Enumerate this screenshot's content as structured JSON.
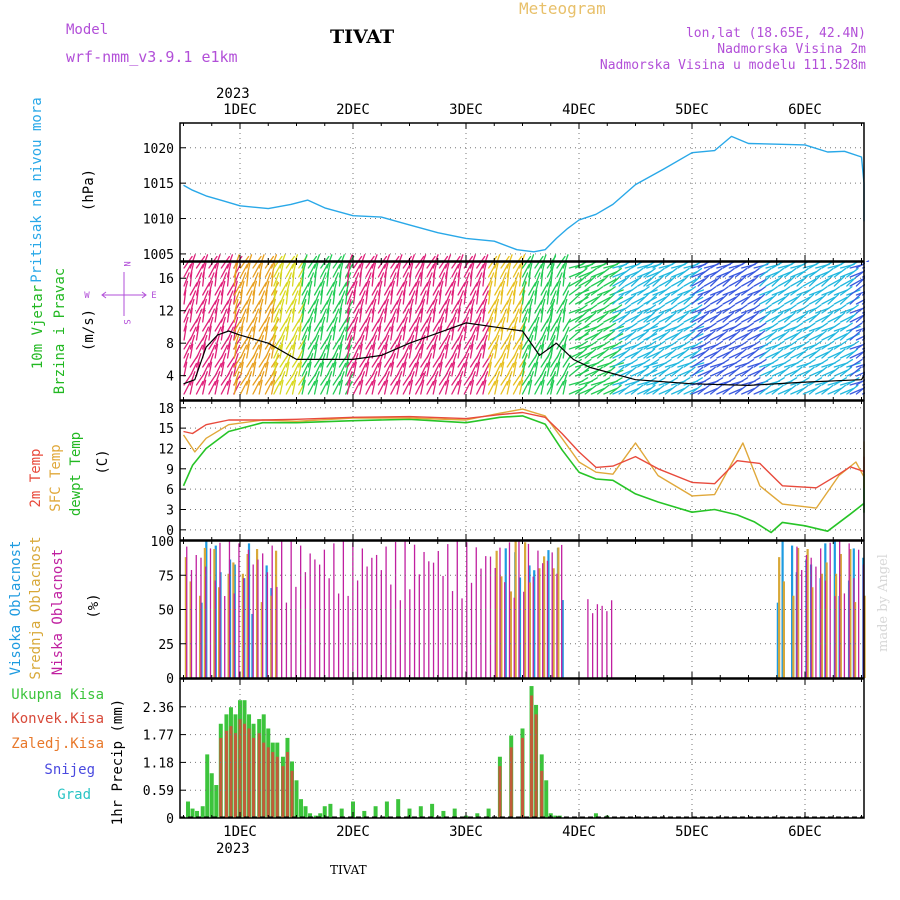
{
  "header": {
    "model_label": "Model",
    "model_name": "wrf-nmm_v3.9.1  e1km",
    "station": "TIVAT",
    "meteogram": "Meteogram",
    "lonlat": "lon,lat (18.65E, 42.4N)",
    "altitude": "Nadmorska Visina 2m",
    "model_altitude": "Nadmorska Visina u modelu 111.528m",
    "watermark": "made by Angel",
    "footer_station": "TIVAT"
  },
  "time_axis": {
    "top_year": "2023",
    "bottom_year": "2023",
    "days": [
      "1DEC",
      "2DEC",
      "3DEC",
      "4DEC",
      "5DEC",
      "6DEC"
    ]
  },
  "colors": {
    "pressure": "#29a8e8",
    "temp2m": "#e84a3c",
    "sfc_temp": "#e0a83a",
    "dewpt": "#27c427",
    "total_rain": "#3cc43c",
    "convective": "#d84a3a",
    "freezing": "#e8782a",
    "snow": "#4a4ae0",
    "hail": "#29c4c4",
    "high_cloud": "#1e9be0",
    "mid_cloud": "#d8a838",
    "low_cloud": "#c020a0",
    "wind_label": "#22b822",
    "compass": "#b24fd8",
    "model_text": "#b24fd8",
    "meteogram_text": "#e8c06a",
    "watermark": "#d8d8d8"
  },
  "panels": {
    "pressure": {
      "label": "Pritisak na nivou mora",
      "unit": "(hPa)"
    },
    "wind": {
      "label1": "10m Vjetar",
      "label2": "Brzina i Pravac",
      "unit": "(m/s)",
      "compass_w": "W",
      "compass_e": "E",
      "compass_n": "N",
      "compass_s": "S"
    },
    "temp": {
      "label1": "2m Temp",
      "label2": "SFC Temp",
      "label3": "dewpt Temp",
      "unit": "(C)"
    },
    "cloud": {
      "label1": "Visoka Oblacnost",
      "label2": "Srednja Oblacnost",
      "label3": "Niska Oblacnost",
      "unit": "(%)"
    },
    "precip": {
      "unit": "1hr Precip (mm)",
      "legend": [
        "Ukupna Kisa",
        "Konvek.Kisa",
        "Zaledj.Kisa",
        "Snijeg",
        "Grad"
      ]
    }
  },
  "chart_data": [
    {
      "type": "line",
      "title": "Pritisak na nivou mora",
      "ylabel": "(hPa)",
      "ylim": [
        1004,
        1023.5
      ],
      "yticks": [
        "1005",
        "1010",
        "1015",
        "1020"
      ],
      "x_unit": "days from 1DEC 00Z",
      "series": [
        {
          "name": "Pritisak na nivou mora",
          "x": [
            -0.5,
            -0.42,
            -0.3,
            -0.15,
            0,
            0.25,
            0.45,
            0.6,
            0.75,
            1.0,
            1.25,
            1.5,
            1.75,
            2.0,
            2.25,
            2.45,
            2.6,
            2.7,
            2.8,
            2.9,
            3.0,
            3.15,
            3.3,
            3.5,
            3.75,
            4.0,
            4.2,
            4.35,
            4.5,
            4.75,
            5.0,
            5.2,
            5.35,
            5.5,
            5.75,
            6.0,
            6.25,
            6.5
          ],
          "y": [
            1014.7,
            1014.0,
            1013.2,
            1012.5,
            1011.8,
            1011.4,
            1012.0,
            1012.6,
            1011.5,
            1010.4,
            1010.2,
            1009.1,
            1008.0,
            1007.2,
            1006.8,
            1005.6,
            1005.3,
            1005.6,
            1007.2,
            1008.6,
            1009.8,
            1010.6,
            1012.0,
            1014.8,
            1017.0,
            1019.3,
            1019.6,
            1021.6,
            1020.6,
            1020.5,
            1020.4,
            1019.4,
            1019.5,
            1018.7,
            1015.0,
            1011.8,
            1010.8,
            1009.6
          ]
        }
      ]
    },
    {
      "type": "line",
      "title": "10m Vjetar Brzina i Pravac",
      "ylabel": "(m/s)",
      "ylim": [
        1,
        18
      ],
      "yticks": [
        "4",
        "8",
        "12",
        "16"
      ],
      "x_unit": "days from 1DEC 00Z",
      "series": [
        {
          "name": "Brzina",
          "x": [
            -0.5,
            -0.4,
            -0.3,
            -0.2,
            -0.1,
            0,
            0.25,
            0.5,
            1.0,
            1.25,
            1.5,
            2.0,
            2.5,
            2.65,
            2.8,
            2.95,
            3.1,
            3.5,
            4.0,
            4.5,
            5.0,
            5.5,
            6.0,
            6.5
          ],
          "y": [
            3.0,
            3.5,
            7.5,
            9.0,
            9.5,
            9.0,
            8.0,
            6.0,
            6.0,
            6.5,
            8.0,
            10.5,
            9.5,
            6.5,
            8.0,
            6.0,
            5.0,
            3.5,
            3.0,
            2.8,
            3.2,
            3.5,
            4.0,
            4.5
          ]
        }
      ]
    },
    {
      "type": "line",
      "title": "2m Temp / SFC Temp / dewpt Temp",
      "ylabel": "(C)",
      "ylim": [
        -1.5,
        19
      ],
      "yticks": [
        "0",
        "3",
        "6",
        "9",
        "12",
        "15",
        "18"
      ],
      "x_unit": "days from 1DEC 00Z",
      "series": [
        {
          "name": "2m Temp",
          "x": [
            -0.5,
            -0.42,
            -0.3,
            -0.1,
            0.2,
            0.5,
            1.0,
            1.5,
            2.0,
            2.3,
            2.5,
            2.7,
            2.85,
            3.0,
            3.15,
            3.3,
            3.5,
            3.7,
            4.0,
            4.2,
            4.4,
            4.6,
            4.8,
            5.1,
            5.3,
            5.4,
            5.6,
            5.9,
            6.3,
            6.5
          ],
          "y": [
            14.5,
            14.2,
            15.5,
            16.2,
            16.2,
            16.3,
            16.6,
            16.7,
            16.4,
            17.0,
            17.3,
            16.6,
            14.2,
            11.5,
            9.2,
            9.4,
            10.8,
            9.0,
            7.0,
            6.8,
            10.2,
            9.8,
            6.5,
            6.2,
            8.2,
            9.3,
            8.6,
            8.4,
            9.4,
            10.8
          ]
        },
        {
          "name": "SFC Temp",
          "x": [
            -0.5,
            -0.4,
            -0.3,
            -0.1,
            0.2,
            0.5,
            1.0,
            1.5,
            2.0,
            2.3,
            2.5,
            2.7,
            2.85,
            3.0,
            3.15,
            3.3,
            3.5,
            3.7,
            4.0,
            4.2,
            4.45,
            4.6,
            4.8,
            5.1,
            5.3,
            5.45,
            5.6,
            5.9,
            6.2,
            6.4,
            6.5
          ],
          "y": [
            14.0,
            11.5,
            13.5,
            15.5,
            16.2,
            16.0,
            16.5,
            16.5,
            16.2,
            17.2,
            17.8,
            16.8,
            13.5,
            10.0,
            8.5,
            8.2,
            12.8,
            8.0,
            5.0,
            5.2,
            12.8,
            6.5,
            3.8,
            3.2,
            8.0,
            10.0,
            7.8,
            6.2,
            7.8,
            13.0,
            12.0
          ]
        },
        {
          "name": "dewpt Temp",
          "x": [
            -0.5,
            -0.42,
            -0.3,
            -0.1,
            0.2,
            0.5,
            1.0,
            1.5,
            2.0,
            2.3,
            2.5,
            2.7,
            2.85,
            3.0,
            3.15,
            3.3,
            3.5,
            3.7,
            4.0,
            4.2,
            4.4,
            4.55,
            4.7,
            4.8,
            5.0,
            5.2,
            5.4,
            5.6,
            5.9,
            6.1,
            6.3,
            6.5
          ],
          "y": [
            6.5,
            9.5,
            12.0,
            14.5,
            15.8,
            15.8,
            16.1,
            16.3,
            15.8,
            16.6,
            16.8,
            15.6,
            11.8,
            8.5,
            7.5,
            7.3,
            5.3,
            4.1,
            2.6,
            3.0,
            2.2,
            1.2,
            -0.4,
            1.1,
            0.6,
            -0.2,
            2.3,
            3.9,
            2.6,
            5.0,
            6.6,
            8.3
          ]
        }
      ]
    },
    {
      "type": "bar",
      "title": "Visoka / Srednja / Niska Oblacnost",
      "ylabel": "(%)",
      "ylim": [
        0,
        100
      ],
      "yticks": [
        "0",
        "25",
        "50",
        "75",
        "100"
      ],
      "x_unit": "days from 1DEC 00Z",
      "series": [
        {
          "name": "Visoka Oblacnost",
          "segments": [
            [
              -0.35,
              0.08,
              100
            ],
            [
              0.1,
              0.3,
              85
            ],
            [
              2.3,
              2.85,
              95
            ],
            [
              4.75,
              6.5,
              100
            ]
          ]
        },
        {
          "name": "Srednja Oblacnost",
          "segments": [
            [
              -0.5,
              0.3,
              95
            ],
            [
              2.25,
              2.85,
              100
            ],
            [
              4.75,
              6.5,
              95
            ]
          ]
        },
        {
          "name": "Niska Oblacnost",
          "segments": [
            [
              -0.5,
              2.85,
              100
            ],
            [
              3.05,
              3.3,
              60
            ],
            [
              4.9,
              6.5,
              100
            ]
          ]
        }
      ]
    },
    {
      "type": "bar",
      "title": "1hr Precip",
      "ylabel": "1hr Precip (mm)",
      "ylim": [
        0,
        2.95
      ],
      "yticks": [
        "0",
        "0.59",
        "1.18",
        "1.77",
        "2.36"
      ],
      "x_unit": "days from 1DEC 00Z",
      "series": [
        {
          "name": "Ukupna Kisa",
          "x": [
            -0.46,
            -0.42,
            -0.38,
            -0.33,
            -0.29,
            -0.25,
            -0.21,
            -0.17,
            -0.12,
            -0.08,
            -0.04,
            0.0,
            0.04,
            0.08,
            0.12,
            0.17,
            0.21,
            0.25,
            0.29,
            0.33,
            0.38,
            0.42,
            0.46,
            0.5,
            0.54,
            0.58,
            0.62,
            0.67,
            0.71,
            0.75,
            0.8,
            0.9,
            1.0,
            1.1,
            1.2,
            1.3,
            1.4,
            1.5,
            1.6,
            1.7,
            1.8,
            1.9,
            2.0,
            2.1,
            2.2,
            2.3,
            2.4,
            2.5,
            2.58,
            2.62,
            2.67,
            2.71,
            2.75,
            2.79,
            2.83,
            3.15,
            3.25
          ],
          "y": [
            0.35,
            0.2,
            0.15,
            0.25,
            1.35,
            0.95,
            0.7,
            2.0,
            2.2,
            2.35,
            2.2,
            2.5,
            2.5,
            2.2,
            2.0,
            2.1,
            2.2,
            1.9,
            1.6,
            1.6,
            1.3,
            1.7,
            1.2,
            0.8,
            0.4,
            0.25,
            0.1,
            0.05,
            0.1,
            0.25,
            0.3,
            0.2,
            0.35,
            0.15,
            0.25,
            0.35,
            0.4,
            0.2,
            0.25,
            0.3,
            0.15,
            0.2,
            0.05,
            0.1,
            0.2,
            1.3,
            1.75,
            1.9,
            2.8,
            2.4,
            1.35,
            0.8,
            0.1,
            0.05,
            0.05,
            0.1,
            0.05
          ]
        },
        {
          "name": "Konvek.Kisa",
          "x": [
            -0.17,
            -0.12,
            -0.08,
            -0.04,
            0.0,
            0.04,
            0.08,
            0.12,
            0.17,
            0.21,
            0.25,
            0.29,
            0.33,
            0.38,
            0.42,
            0.46,
            2.3,
            2.4,
            2.5,
            2.58,
            2.62,
            2.67
          ],
          "y": [
            1.7,
            1.85,
            1.95,
            1.8,
            2.1,
            2.0,
            1.9,
            1.7,
            1.8,
            1.6,
            1.5,
            1.4,
            1.3,
            1.1,
            1.4,
            1.0,
            1.1,
            1.5,
            1.7,
            2.6,
            2.2,
            1.0
          ]
        }
      ]
    }
  ]
}
